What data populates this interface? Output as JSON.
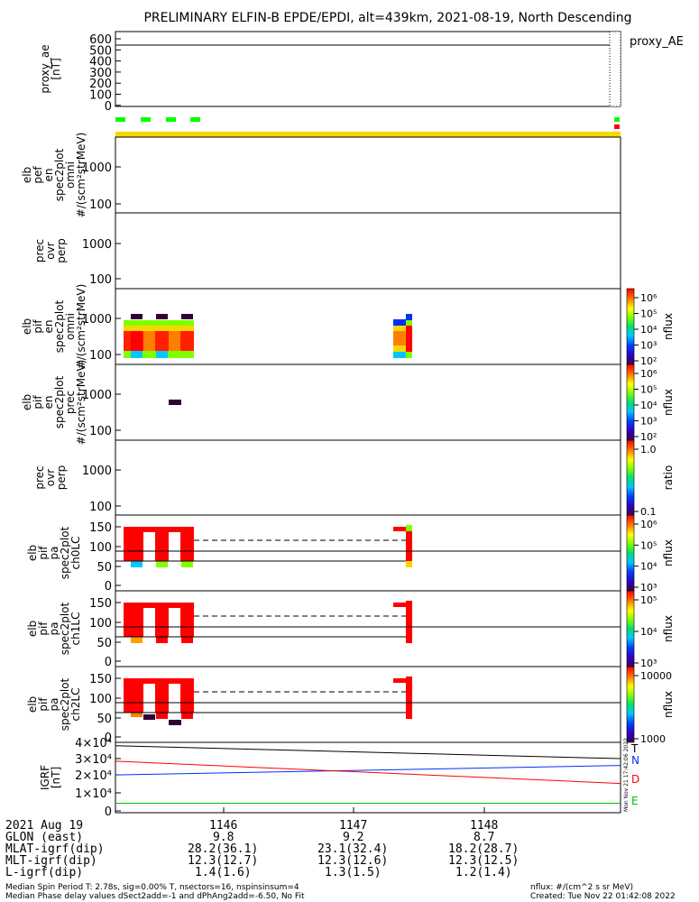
{
  "title": "PRELIMINARY ELFIN-B EPDE/EPDI, alt=439km, 2021-08-19, North Descending",
  "colors": {
    "red": "#ff0000",
    "green": "#00ff00",
    "yellow": "#f5d800",
    "blue": "#0030ff",
    "dark": "#330033",
    "cyan": "#00c8ff",
    "lime": "#a0ff20"
  },
  "chart_data": [
    {
      "type": "line",
      "panel": "proxy_ae",
      "ylabel_lines": [
        "proxy_ae",
        "[nT]"
      ],
      "yticks": [
        "600",
        "500",
        "400",
        "300",
        "200",
        "100",
        "0"
      ],
      "ylim": [
        0,
        650
      ],
      "legend": "proxy_AE",
      "series": [
        {
          "name": "proxy_AE",
          "x": [
            "1145.0",
            "1149.0"
          ],
          "values": [
            500,
            500
          ]
        }
      ]
    },
    {
      "type": "heatmap",
      "panel": "elb_pef_en_spec2plot_omni",
      "ylabel_lines": [
        "elb",
        "pef",
        "en",
        "spec2plot",
        "omni",
        "#/(scm²strMeV)"
      ],
      "yticks": [
        "1000",
        "100"
      ],
      "scale": "log"
    },
    {
      "type": "heatmap",
      "panel": "prec_ovr_perp_e",
      "ylabel_lines": [
        "prec",
        "ovr",
        "perp"
      ],
      "yticks": [
        "1000",
        "100"
      ],
      "scale": "log"
    },
    {
      "type": "heatmap",
      "panel": "elb_pif_en_spec2plot_omni",
      "ylabel_lines": [
        "elb",
        "pif",
        "en",
        "spec2plot",
        "omni",
        "#/(scm²strMeV)"
      ],
      "yticks": [
        "1000",
        "100"
      ],
      "scale": "log",
      "colorbar": {
        "label": "nflux",
        "ticks": [
          "10⁶",
          "10⁵",
          "10⁴",
          "10³",
          "10²"
        ]
      }
    },
    {
      "type": "heatmap",
      "panel": "elb_pif_en_spec2plot_prec",
      "ylabel_lines": [
        "elb",
        "pif",
        "en",
        "spec2plot",
        "prec",
        "#/(scm²strMeV)"
      ],
      "yticks": [
        "1000",
        "100"
      ],
      "scale": "log",
      "colorbar": {
        "label": "nflux",
        "ticks": [
          "10⁶",
          "10⁵",
          "10⁴",
          "10³",
          "10²"
        ]
      }
    },
    {
      "type": "heatmap",
      "panel": "prec_ovr_perp_i",
      "ylabel_lines": [
        "prec",
        "ovr",
        "perp"
      ],
      "yticks": [
        "1000",
        "100"
      ],
      "scale": "log",
      "colorbar": {
        "label": "ratio",
        "ticks": [
          "1.0",
          "0.1"
        ]
      }
    },
    {
      "type": "heatmap",
      "panel": "elb_pif_pa_spec2plot_ch0LC",
      "ylabel_lines": [
        "elb",
        "pif",
        "pa",
        "spec2plot",
        "ch0LC"
      ],
      "yticks": [
        "150",
        "100",
        "50",
        "0"
      ],
      "ylim": [
        0,
        180
      ],
      "colorbar": {
        "label": "nflux",
        "ticks": [
          "10⁶",
          "10⁵",
          "10⁴",
          "10³"
        ]
      }
    },
    {
      "type": "heatmap",
      "panel": "elb_pif_pa_spec2plot_ch1LC",
      "ylabel_lines": [
        "elb",
        "pif",
        "pa",
        "spec2plot",
        "ch1LC"
      ],
      "yticks": [
        "150",
        "100",
        "50",
        "0"
      ],
      "ylim": [
        0,
        180
      ],
      "colorbar": {
        "label": "nflux",
        "ticks": [
          "10⁵",
          "10⁴",
          "10³"
        ]
      }
    },
    {
      "type": "heatmap",
      "panel": "elb_pif_pa_spec2plot_ch2LC",
      "ylabel_lines": [
        "elb",
        "pif",
        "pa",
        "spec2plot",
        "ch2LC"
      ],
      "yticks": [
        "150",
        "100",
        "50",
        "0"
      ],
      "ylim": [
        0,
        180
      ],
      "colorbar": {
        "label": "nflux",
        "ticks": [
          "10000",
          "1000"
        ]
      }
    },
    {
      "type": "line",
      "panel": "igrf",
      "ylabel_lines": [
        "IGRF",
        "[nT]"
      ],
      "yticks": [
        "4×10⁴",
        "3×10⁴",
        "2×10⁴",
        "1×10⁴",
        "0"
      ],
      "ylim": [
        0,
        42000
      ],
      "legend": [
        "T",
        "N",
        "D",
        "E"
      ],
      "series": [
        {
          "name": "T",
          "x": [
            "1145.0",
            "1149.0"
          ],
          "values": [
            38000,
            30500
          ]
        },
        {
          "name": "N",
          "x": [
            "1145.0",
            "1149.0"
          ],
          "values": [
            21000,
            26500
          ]
        },
        {
          "name": "D",
          "x": [
            "1145.0",
            "1149.0"
          ],
          "values": [
            29000,
            16000
          ]
        },
        {
          "name": "E",
          "x": [
            "1145.0",
            "1149.0"
          ],
          "values": [
            4500,
            4500
          ]
        }
      ]
    }
  ],
  "side_stamp": "Mon Nov 21 17:42:06 2022",
  "footer": {
    "rows": [
      {
        "label": "2021 Aug 19",
        "values": [
          "1146",
          "1147",
          "1148"
        ]
      },
      {
        "label": "GLON (east)",
        "values": [
          "9.8",
          "9.2",
          "8.7"
        ]
      },
      {
        "label": "MLAT-igrf(dip)",
        "values": [
          "28.2(36.1)",
          "23.1(32.4)",
          "18.2(28.7)"
        ]
      },
      {
        "label": "MLT-igrf(dip)",
        "values": [
          "12.3(12.7)",
          "12.3(12.6)",
          "12.3(12.5)"
        ]
      },
      {
        "label": "L-igrf(dip)",
        "values": [
          "1.4(1.6)",
          "1.3(1.5)",
          "1.2(1.4)"
        ]
      }
    ],
    "note1": "Median Spin Period T: 2.78s, sig=0.00% T, nsectors=16, nspinsinsum=4",
    "note2": "Median Phase delay values dSect2add=-1 and dPhAng2add=-6.50, No Fit",
    "flux_units": "nflux: #/(cm^2 s sr MeV)",
    "created": "Created: Tue Nov 22 01:42:08 2022"
  }
}
